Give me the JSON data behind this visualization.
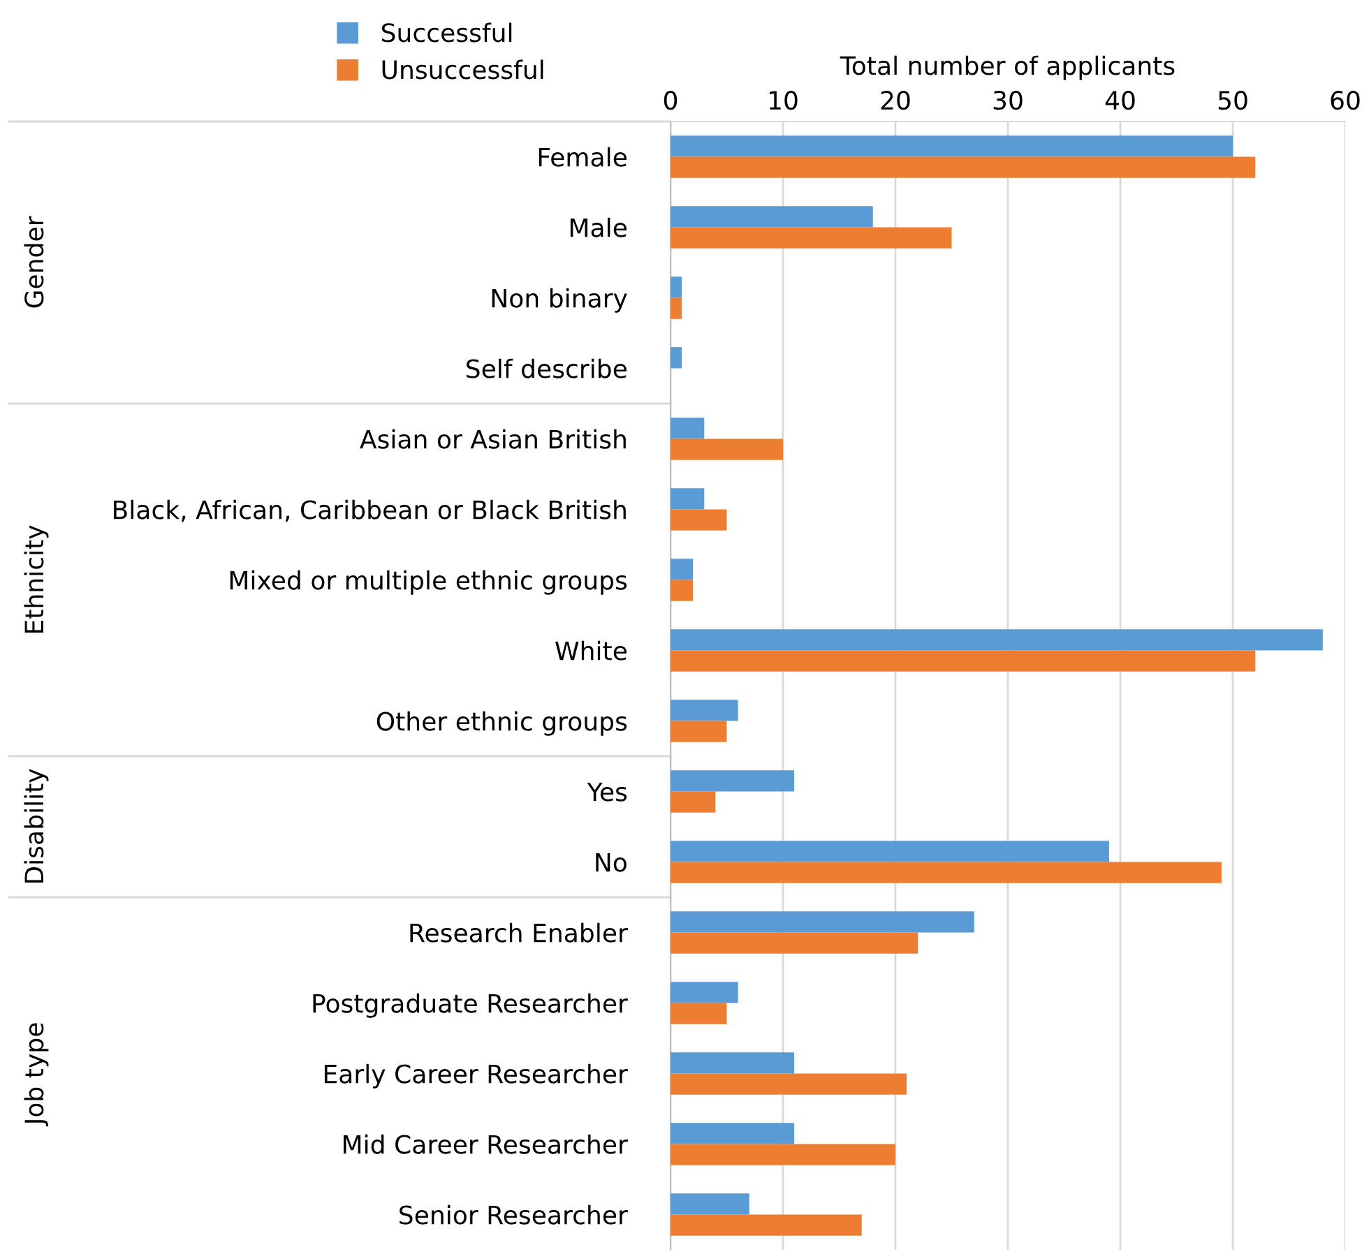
{
  "chart_data": {
    "type": "bar",
    "orientation": "horizontal",
    "xlabel": "Total number of applicants",
    "categories": [
      "Female",
      "Male",
      "Non binary",
      "Self describe",
      "Asian or Asian British",
      "Black, African, Caribbean or Black British",
      "Mixed or multiple ethnic groups",
      "White",
      "Other ethnic groups",
      "Yes",
      "No",
      "Research Enabler",
      "Postgraduate Researcher",
      "Early Career Researcher",
      "Mid Career Researcher",
      "Senior Researcher"
    ],
    "series": [
      {
        "name": "Successful",
        "color": "#5b9bd5",
        "values": [
          50,
          18,
          1,
          1,
          3,
          3,
          2,
          58,
          6,
          11,
          39,
          27,
          6,
          11,
          11,
          7
        ]
      },
      {
        "name": "Unsuccessful",
        "color": "#ed7d31",
        "values": [
          52,
          25,
          1,
          0,
          10,
          5,
          2,
          52,
          5,
          4,
          49,
          22,
          5,
          21,
          20,
          17
        ]
      }
    ],
    "xlim": [
      0,
      60
    ],
    "xticks": [
      0,
      10,
      20,
      30,
      40,
      50,
      60
    ],
    "grid": "x",
    "legend": "top left",
    "annotations": [
      "Gender",
      "Ethnicity",
      "Disability",
      "Job type"
    ]
  }
}
